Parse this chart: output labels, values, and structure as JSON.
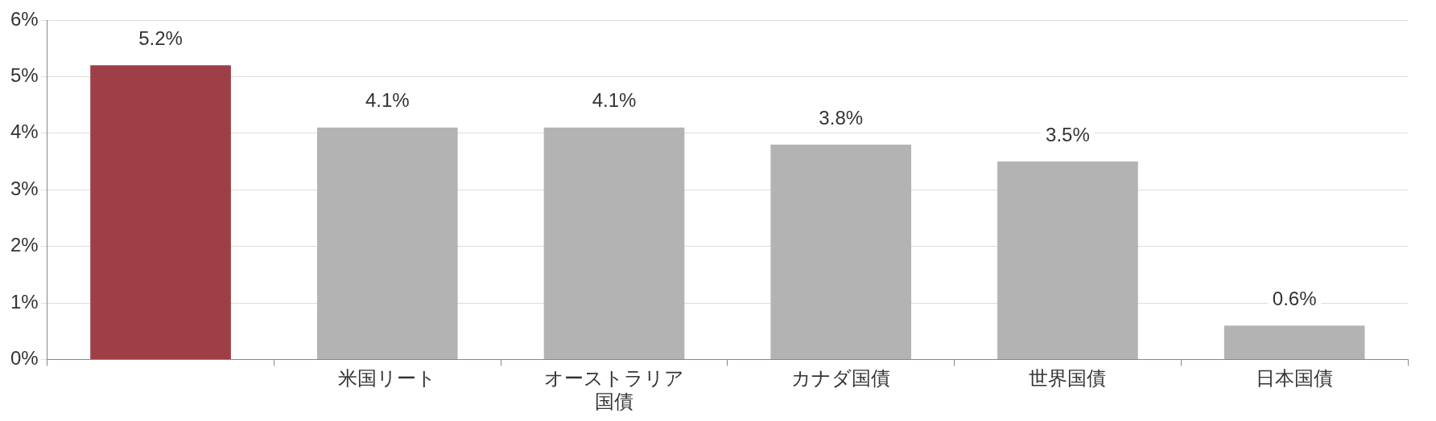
{
  "chart_data": {
    "type": "bar",
    "categories": [
      null,
      "米国リート",
      "オーストラリア国債",
      "カナダ国債",
      "世界国債",
      "日本国債"
    ],
    "values": [
      5.2,
      4.1,
      4.1,
      3.8,
      3.5,
      0.6
    ],
    "colors": [
      "#9e3f47",
      "#b3b3b3",
      "#b3b3b3",
      "#b3b3b3",
      "#b3b3b3",
      "#b3b3b3"
    ],
    "ylim": [
      0,
      6
    ],
    "yticks": [
      {
        "value": 0,
        "label": "0%"
      },
      {
        "value": 1,
        "label": "1%"
      },
      {
        "value": 2,
        "label": "2%"
      },
      {
        "value": 3,
        "label": "3%"
      },
      {
        "value": 4,
        "label": "4%"
      },
      {
        "value": 5,
        "label": "5%"
      },
      {
        "value": 6,
        "label": "6%"
      }
    ],
    "value_labels": [
      "5.2%",
      "4.1%",
      "4.1%",
      "3.8%",
      "3.5%",
      "0.6%"
    ],
    "grid": "y",
    "legend": false
  }
}
